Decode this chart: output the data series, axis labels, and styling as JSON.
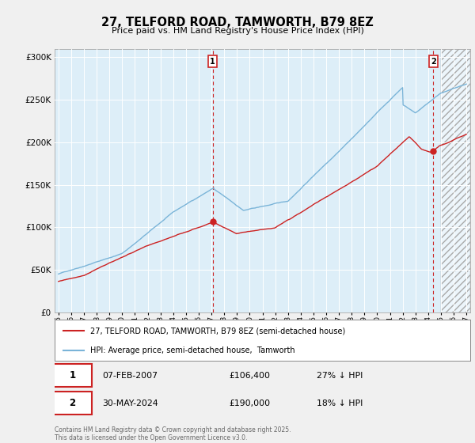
{
  "title": "27, TELFORD ROAD, TAMWORTH, B79 8EZ",
  "subtitle": "Price paid vs. HM Land Registry's House Price Index (HPI)",
  "legend_line1": "27, TELFORD ROAD, TAMWORTH, B79 8EZ (semi-detached house)",
  "legend_line2": "HPI: Average price, semi-detached house,  Tamworth",
  "annotation1_date": "07-FEB-2007",
  "annotation1_price": "£106,400",
  "annotation1_hpi": "27% ↓ HPI",
  "annotation2_date": "30-MAY-2024",
  "annotation2_price": "£190,000",
  "annotation2_hpi": "18% ↓ HPI",
  "footer": "Contains HM Land Registry data © Crown copyright and database right 2025.\nThis data is licensed under the Open Government Licence v3.0.",
  "sale1_x": 2007.09,
  "sale1_y": 106400,
  "sale2_x": 2024.41,
  "sale2_y": 190000,
  "hpi_color": "#7ab4d8",
  "hpi_fill_color": "#d9eaf5",
  "price_color": "#cc2222",
  "vline_color": "#cc2222",
  "background_color": "#f0f0f0",
  "plot_background": "#ddeef8",
  "ylim": [
    0,
    310000
  ],
  "xlim": [
    1994.7,
    2027.3
  ]
}
